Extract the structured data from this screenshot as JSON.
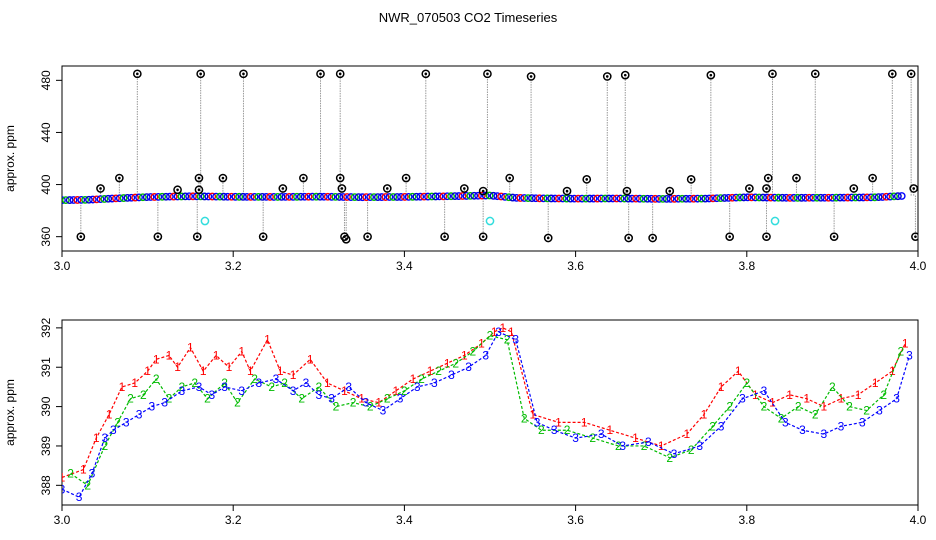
{
  "title": "NWR_070503  CO2 Timeseries",
  "colors": {
    "axis": "#000000",
    "series_1": "#ff0000",
    "series_2": "#00bb00",
    "series_3": "#0000ff",
    "series_mixed": "#0000cc",
    "outlier_ring": "#000000",
    "flagged": "#33dddd",
    "spike_line": "#999999"
  },
  "chart_data": [
    {
      "type": "scatter",
      "name": "top-panel",
      "title": "NWR_070503  CO2 Timeseries",
      "xlabel": "",
      "ylabel": "approx. ppm",
      "xlim": [
        3.0,
        4.0
      ],
      "ylim": [
        349,
        491
      ],
      "xticks": [
        3.0,
        3.2,
        3.4,
        3.6,
        3.8,
        4.0
      ],
      "xtick_labels": [
        "3.0",
        "3.2",
        "3.4",
        "3.6",
        "3.8",
        "4.0"
      ],
      "yticks": [
        360,
        400,
        440,
        480
      ],
      "ytick_labels": [
        "360",
        "400",
        "440",
        "480"
      ],
      "baseline": {
        "x": [
          3.0,
          3.03,
          3.06,
          3.1,
          3.15,
          3.2,
          3.25,
          3.3,
          3.35,
          3.4,
          3.45,
          3.5,
          3.53,
          3.56,
          3.6,
          3.65,
          3.7,
          3.75,
          3.8,
          3.85,
          3.9,
          3.95,
          3.99
        ],
        "y": [
          388,
          388.3,
          389.3,
          390.4,
          391,
          390.6,
          390.5,
          390.7,
          390.3,
          390.5,
          391,
          391.6,
          389.8,
          389.4,
          389.2,
          389.3,
          389,
          389.2,
          390.2,
          389.8,
          389.9,
          390.2,
          391.5
        ]
      },
      "outliers_high": [
        {
          "x": 3.045,
          "y": 397
        },
        {
          "x": 3.067,
          "y": 405
        },
        {
          "x": 3.088,
          "y": 485
        },
        {
          "x": 3.135,
          "y": 396
        },
        {
          "x": 3.162,
          "y": 485
        },
        {
          "x": 3.16,
          "y": 405
        },
        {
          "x": 3.16,
          "y": 396
        },
        {
          "x": 3.188,
          "y": 405
        },
        {
          "x": 3.212,
          "y": 485
        },
        {
          "x": 3.258,
          "y": 397
        },
        {
          "x": 3.282,
          "y": 405
        },
        {
          "x": 3.302,
          "y": 485
        },
        {
          "x": 3.325,
          "y": 485
        },
        {
          "x": 3.325,
          "y": 405
        },
        {
          "x": 3.327,
          "y": 397
        },
        {
          "x": 3.38,
          "y": 397
        },
        {
          "x": 3.402,
          "y": 405
        },
        {
          "x": 3.425,
          "y": 485
        },
        {
          "x": 3.47,
          "y": 397
        },
        {
          "x": 3.497,
          "y": 485
        },
        {
          "x": 3.492,
          "y": 395
        },
        {
          "x": 3.523,
          "y": 405
        },
        {
          "x": 3.548,
          "y": 483
        },
        {
          "x": 3.59,
          "y": 395
        },
        {
          "x": 3.613,
          "y": 404
        },
        {
          "x": 3.637,
          "y": 483
        },
        {
          "x": 3.658,
          "y": 484
        },
        {
          "x": 3.66,
          "y": 395
        },
        {
          "x": 3.71,
          "y": 395
        },
        {
          "x": 3.735,
          "y": 404
        },
        {
          "x": 3.758,
          "y": 484
        },
        {
          "x": 3.803,
          "y": 397
        },
        {
          "x": 3.825,
          "y": 405
        },
        {
          "x": 3.823,
          "y": 397
        },
        {
          "x": 3.83,
          "y": 485
        },
        {
          "x": 3.858,
          "y": 405
        },
        {
          "x": 3.88,
          "y": 485
        },
        {
          "x": 3.925,
          "y": 397
        },
        {
          "x": 3.947,
          "y": 405
        },
        {
          "x": 3.97,
          "y": 485
        },
        {
          "x": 3.992,
          "y": 485
        },
        {
          "x": 3.995,
          "y": 397
        }
      ],
      "outliers_low": [
        {
          "x": 3.022,
          "y": 360
        },
        {
          "x": 3.112,
          "y": 360
        },
        {
          "x": 3.158,
          "y": 360
        },
        {
          "x": 3.235,
          "y": 360
        },
        {
          "x": 3.33,
          "y": 360
        },
        {
          "x": 3.332,
          "y": 358
        },
        {
          "x": 3.357,
          "y": 360
        },
        {
          "x": 3.447,
          "y": 360
        },
        {
          "x": 3.492,
          "y": 360
        },
        {
          "x": 3.568,
          "y": 359
        },
        {
          "x": 3.662,
          "y": 359
        },
        {
          "x": 3.69,
          "y": 359
        },
        {
          "x": 3.78,
          "y": 360
        },
        {
          "x": 3.823,
          "y": 360
        },
        {
          "x": 3.902,
          "y": 360
        },
        {
          "x": 3.997,
          "y": 360
        }
      ],
      "flagged_points": [
        {
          "x": 3.167,
          "y": 372
        },
        {
          "x": 3.5,
          "y": 372
        },
        {
          "x": 3.833,
          "y": 372
        }
      ]
    },
    {
      "type": "scatter",
      "name": "bottom-panel",
      "xlabel": "",
      "ylabel": "approx. ppm",
      "xlim": [
        3.0,
        4.0
      ],
      "ylim": [
        387.5,
        392.2
      ],
      "xticks": [
        3.0,
        3.2,
        3.4,
        3.6,
        3.8,
        4.0
      ],
      "xtick_labels": [
        "3.0",
        "3.2",
        "3.4",
        "3.6",
        "3.8",
        "4.0"
      ],
      "yticks": [
        388,
        389,
        390,
        391,
        392
      ],
      "ytick_labels": [
        "388",
        "389",
        "390",
        "391",
        "392"
      ],
      "legend_symbols": [
        "1",
        "2",
        "3"
      ],
      "series": [
        {
          "name": "1",
          "symbol": "1",
          "x": [
            3.0,
            3.025,
            3.04,
            3.055,
            3.07,
            3.085,
            3.1,
            3.11,
            3.125,
            3.135,
            3.15,
            3.165,
            3.18,
            3.195,
            3.21,
            3.22,
            3.24,
            3.255,
            3.27,
            3.29,
            3.31,
            3.33,
            3.35,
            3.37,
            3.39,
            3.41,
            3.43,
            3.45,
            3.47,
            3.49,
            3.505,
            3.515,
            3.525,
            3.55,
            3.58,
            3.61,
            3.64,
            3.67,
            3.7,
            3.73,
            3.75,
            3.77,
            3.79,
            3.81,
            3.83,
            3.85,
            3.87,
            3.89,
            3.91,
            3.93,
            3.95,
            3.97,
            3.985
          ],
          "y": [
            388.2,
            388.4,
            389.2,
            389.8,
            390.5,
            390.6,
            390.9,
            391.2,
            391.3,
            391.0,
            391.5,
            390.9,
            391.3,
            391.0,
            391.4,
            390.9,
            391.7,
            390.9,
            390.8,
            391.2,
            390.6,
            390.4,
            390.2,
            390.1,
            390.4,
            390.7,
            390.9,
            391.1,
            391.3,
            391.6,
            391.9,
            392.0,
            391.9,
            389.8,
            389.6,
            389.6,
            389.4,
            389.2,
            389.0,
            389.3,
            389.8,
            390.5,
            390.9,
            390.3,
            390.1,
            390.3,
            390.2,
            390.0,
            390.2,
            390.3,
            390.6,
            390.9,
            391.6
          ]
        },
        {
          "name": "2",
          "symbol": "2",
          "x": [
            3.01,
            3.03,
            3.05,
            3.065,
            3.08,
            3.095,
            3.11,
            3.125,
            3.14,
            3.155,
            3.17,
            3.19,
            3.205,
            3.225,
            3.245,
            3.26,
            3.28,
            3.3,
            3.32,
            3.34,
            3.36,
            3.38,
            3.4,
            3.42,
            3.44,
            3.46,
            3.48,
            3.5,
            3.52,
            3.54,
            3.56,
            3.59,
            3.62,
            3.65,
            3.68,
            3.71,
            3.735,
            3.76,
            3.78,
            3.8,
            3.82,
            3.84,
            3.86,
            3.88,
            3.9,
            3.92,
            3.94,
            3.96,
            3.98
          ],
          "y": [
            388.3,
            388.0,
            389.0,
            389.6,
            390.2,
            390.3,
            390.7,
            390.2,
            390.5,
            390.6,
            390.2,
            390.6,
            390.1,
            390.7,
            390.5,
            390.6,
            390.2,
            390.5,
            390.0,
            390.1,
            390.0,
            390.2,
            390.4,
            390.7,
            390.9,
            391.1,
            391.4,
            391.8,
            391.7,
            389.7,
            389.4,
            389.4,
            389.2,
            389.0,
            389.0,
            388.7,
            388.9,
            389.5,
            390.0,
            390.6,
            390.0,
            389.7,
            390.0,
            389.8,
            390.5,
            390.0,
            389.9,
            390.3,
            391.4
          ]
        },
        {
          "name": "3",
          "symbol": "3",
          "x": [
            3.0,
            3.02,
            3.035,
            3.05,
            3.06,
            3.075,
            3.09,
            3.105,
            3.12,
            3.14,
            3.16,
            3.175,
            3.19,
            3.21,
            3.23,
            3.25,
            3.27,
            3.285,
            3.3,
            3.315,
            3.335,
            3.355,
            3.375,
            3.395,
            3.415,
            3.435,
            3.455,
            3.475,
            3.495,
            3.51,
            3.53,
            3.555,
            3.575,
            3.6,
            3.63,
            3.655,
            3.685,
            3.715,
            3.745,
            3.77,
            3.795,
            3.82,
            3.845,
            3.865,
            3.89,
            3.91,
            3.935,
            3.955,
            3.975,
            3.99
          ],
          "y": [
            387.9,
            387.7,
            388.3,
            389.2,
            389.4,
            389.6,
            389.8,
            390.0,
            390.1,
            390.4,
            390.5,
            390.3,
            390.5,
            390.4,
            390.6,
            390.7,
            390.4,
            390.6,
            390.3,
            390.2,
            390.5,
            390.1,
            389.9,
            390.2,
            390.5,
            390.6,
            390.8,
            391.0,
            391.3,
            391.9,
            391.7,
            389.6,
            389.4,
            389.2,
            389.3,
            389.0,
            389.1,
            388.8,
            389.0,
            389.5,
            390.2,
            390.4,
            389.6,
            389.4,
            389.3,
            389.5,
            389.6,
            389.9,
            390.2,
            391.3
          ]
        }
      ]
    }
  ]
}
